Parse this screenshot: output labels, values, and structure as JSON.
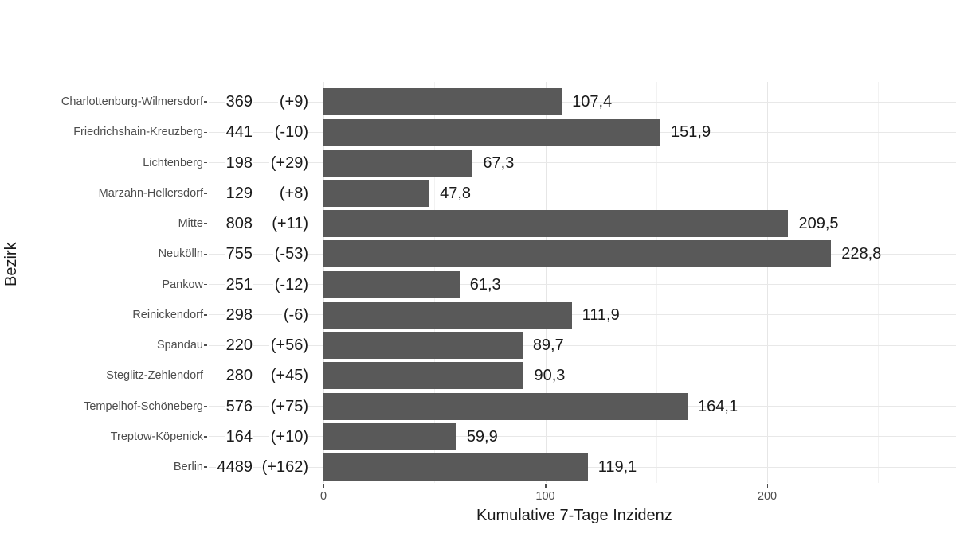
{
  "chart_data": {
    "type": "bar",
    "orientation": "horizontal",
    "title": "",
    "xlabel": "Kumulative 7-Tage Inzidenz",
    "ylabel": "Bezirk",
    "xlim": [
      0,
      285
    ],
    "x_ticks": [
      "0",
      "100",
      "200"
    ],
    "x_tick_values": [
      0,
      100,
      200
    ],
    "grid": true,
    "bar_color": "#595959",
    "categories": [
      "Charlottenburg-Wilmersdorf",
      "Friedrichshain-Kreuzberg",
      "Lichtenberg",
      "Marzahn-Hellersdorf",
      "Mitte",
      "Neukölln",
      "Pankow",
      "Reinickendorf",
      "Spandau",
      "Steglitz-Zehlendorf",
      "Tempelhof-Schöneberg",
      "Treptow-Köpenick",
      "Berlin"
    ],
    "values": [
      107.4,
      151.9,
      67.3,
      47.8,
      209.5,
      228.8,
      61.3,
      111.9,
      89.7,
      90.3,
      164.1,
      59.9,
      119.1
    ],
    "value_labels": [
      "107,4",
      "151,9",
      "67,3",
      "47,8",
      "209,5",
      "228,8",
      "61,3",
      "111,9",
      "89,7",
      "90,3",
      "164,1",
      "59,9",
      "119,1"
    ],
    "cases": [
      369,
      441,
      198,
      129,
      808,
      755,
      251,
      298,
      220,
      280,
      576,
      164,
      4489
    ],
    "cases_labels": [
      "369",
      "441",
      "198",
      "129",
      "808",
      "755",
      "251",
      "298",
      "220",
      "280",
      "576",
      "164",
      "4489"
    ],
    "change_labels": [
      "(+9)",
      "(-10)",
      "(+29)",
      "(+8)",
      "(+11)",
      "(-53)",
      "(-12)",
      "(-6)",
      "(+56)",
      "(+45)",
      "(+75)",
      "(+10)",
      "(+162)"
    ],
    "changes": [
      9,
      -10,
      29,
      8,
      11,
      -53,
      -12,
      -6,
      56,
      45,
      75,
      10,
      162
    ]
  }
}
